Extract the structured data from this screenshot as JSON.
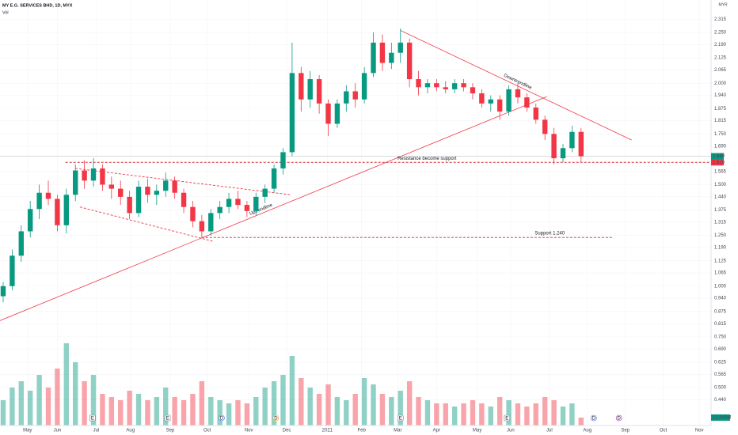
{
  "chart_data": {
    "type": "candlestick",
    "title": "MY E.G. SERVICES BHD, 1D, MYX",
    "subtitle": "Vol",
    "currency": "MYR",
    "up_color": "#089981",
    "down_color": "#f23645",
    "grid": true,
    "xlim": [
      -0.35,
      78.4
    ],
    "ylim": [
      0.313,
      2.41
    ],
    "volume_lim": [
      0,
      175
    ],
    "xticks": [
      {
        "value": 2.7,
        "label": "May"
      },
      {
        "value": 6.0,
        "label": "Jun"
      },
      {
        "value": 10.3,
        "label": "Jul"
      },
      {
        "value": 14.1,
        "label": "Aug"
      },
      {
        "value": 18.5,
        "label": "Sep"
      },
      {
        "value": 22.6,
        "label": "Oct"
      },
      {
        "value": 27.2,
        "label": "Nov"
      },
      {
        "value": 31.4,
        "label": "Dec"
      },
      {
        "value": 35.9,
        "label": "2021"
      },
      {
        "value": 39.7,
        "label": "Feb"
      },
      {
        "value": 43.7,
        "label": "Mar"
      },
      {
        "value": 48.0,
        "label": "Apr"
      },
      {
        "value": 52.5,
        "label": "May"
      },
      {
        "value": 56.2,
        "label": "Jun"
      },
      {
        "value": 60.5,
        "label": "Jul"
      },
      {
        "value": 64.7,
        "label": "Aug"
      },
      {
        "value": 68.9,
        "label": "Sep"
      },
      {
        "value": 73.1,
        "label": "Oct"
      },
      {
        "value": 77.1,
        "label": "Nov"
      }
    ],
    "yticks": [
      2.315,
      {
        "value": 2.25,
        "label": "2.250"
      },
      {
        "value": 2.19,
        "label": "2.190"
      },
      2.125,
      2.065,
      {
        "value": 2.0,
        "label": "2.000"
      },
      {
        "value": 1.94,
        "label": "1.940"
      },
      1.875,
      1.815,
      {
        "value": 1.75,
        "label": "1.750"
      },
      {
        "value": 1.69,
        "label": "1.690"
      },
      1.565,
      {
        "value": 1.5,
        "label": "1.500"
      },
      {
        "value": 1.44,
        "label": "1.440"
      },
      1.375,
      1.315,
      {
        "value": 1.25,
        "label": "1.250"
      },
      {
        "value": 1.19,
        "label": "1.190"
      },
      1.125,
      1.065,
      {
        "value": 1.0,
        "label": "1.000"
      },
      {
        "value": 0.94,
        "label": "0.940"
      },
      0.875,
      0.815,
      {
        "value": 0.75,
        "label": "0.750"
      },
      {
        "value": 0.69,
        "label": "0.690"
      },
      0.625,
      0.565,
      {
        "value": 0.5,
        "label": "0.500"
      },
      {
        "value": 0.44,
        "label": "0.440"
      }
    ],
    "open": [
      0.95,
      1.0,
      1.15,
      1.27,
      1.38,
      1.46,
      1.43,
      1.3,
      1.45,
      1.57,
      1.52,
      1.58,
      1.5,
      1.48,
      1.44,
      1.36,
      1.49,
      1.45,
      1.47,
      1.52,
      1.46,
      1.39,
      1.32,
      1.27,
      1.36,
      1.39,
      1.43,
      1.4,
      1.37,
      1.44,
      1.48,
      1.58,
      1.66,
      2.05,
      1.92,
      2.02,
      1.9,
      1.8,
      1.9,
      1.96,
      1.92,
      2.05,
      2.2,
      2.1,
      2.15,
      2.2,
      2.02,
      1.98,
      2.0,
      1.98,
      1.97,
      2.0,
      1.98,
      1.95,
      1.9,
      1.92,
      1.86,
      1.97,
      1.93,
      1.88,
      1.82,
      1.75,
      1.63,
      1.68,
      1.76
    ],
    "high": [
      1.02,
      1.18,
      1.3,
      1.42,
      1.5,
      1.52,
      1.45,
      1.48,
      1.6,
      1.62,
      1.63,
      1.6,
      1.54,
      1.52,
      1.47,
      1.52,
      1.53,
      1.5,
      1.56,
      1.54,
      1.48,
      1.42,
      1.35,
      1.38,
      1.42,
      1.46,
      1.47,
      1.42,
      1.46,
      1.5,
      1.6,
      1.68,
      2.2,
      2.08,
      2.06,
      2.04,
      1.92,
      1.92,
      1.99,
      2.0,
      2.08,
      2.25,
      2.24,
      2.2,
      2.27,
      2.22,
      2.06,
      2.02,
      2.02,
      2.01,
      2.02,
      2.02,
      2.0,
      1.97,
      1.94,
      1.94,
      1.99,
      2.0,
      1.95,
      1.9,
      1.84,
      1.78,
      1.7,
      1.79,
      1.78
    ],
    "low": [
      0.92,
      0.98,
      1.12,
      1.24,
      1.33,
      1.4,
      1.27,
      1.26,
      1.42,
      1.48,
      1.49,
      1.47,
      1.43,
      1.4,
      1.33,
      1.34,
      1.41,
      1.4,
      1.44,
      1.43,
      1.36,
      1.29,
      1.24,
      1.25,
      1.33,
      1.36,
      1.38,
      1.34,
      1.35,
      1.41,
      1.46,
      1.55,
      1.64,
      1.86,
      1.88,
      1.85,
      1.74,
      1.78,
      1.86,
      1.88,
      1.9,
      2.03,
      2.06,
      2.07,
      2.1,
      1.98,
      1.94,
      1.95,
      1.96,
      1.95,
      1.95,
      1.96,
      1.92,
      1.88,
      1.86,
      1.82,
      1.84,
      1.9,
      1.86,
      1.8,
      1.72,
      1.6,
      1.61,
      1.66,
      1.61
    ],
    "close": [
      1.0,
      1.15,
      1.27,
      1.38,
      1.46,
      1.43,
      1.3,
      1.45,
      1.57,
      1.52,
      1.58,
      1.5,
      1.48,
      1.44,
      1.36,
      1.49,
      1.45,
      1.47,
      1.52,
      1.46,
      1.39,
      1.32,
      1.27,
      1.36,
      1.39,
      1.43,
      1.4,
      1.37,
      1.44,
      1.48,
      1.58,
      1.66,
      2.05,
      1.92,
      2.02,
      1.9,
      1.8,
      1.9,
      1.96,
      1.92,
      2.05,
      2.2,
      2.1,
      2.15,
      2.2,
      2.02,
      1.98,
      2.0,
      1.98,
      1.97,
      2.0,
      1.98,
      1.95,
      1.9,
      1.92,
      1.86,
      1.97,
      1.93,
      1.88,
      1.82,
      1.75,
      1.63,
      1.68,
      1.76,
      1.64
    ],
    "volume": [
      40,
      60,
      70,
      55,
      80,
      60,
      90,
      130,
      100,
      70,
      80,
      50,
      45,
      40,
      55,
      50,
      40,
      45,
      60,
      45,
      40,
      50,
      70,
      45,
      40,
      35,
      40,
      35,
      45,
      60,
      70,
      80,
      110,
      75,
      60,
      50,
      65,
      45,
      40,
      50,
      75,
      65,
      50,
      45,
      55,
      70,
      45,
      40,
      35,
      35,
      30,
      35,
      40,
      35,
      30,
      45,
      40,
      35,
      30,
      35,
      45,
      40,
      30,
      35,
      12.545
    ],
    "price_labels": [
      {
        "value": 1.64,
        "label": "1.640",
        "color": "#089981"
      },
      {
        "value": 1.61,
        "label": "1.610",
        "color": "#f23645"
      }
    ],
    "volume_label": {
      "value": 12.545,
      "label": "12.545M",
      "color": "#089981"
    },
    "annotations": [
      {
        "text": "Uptrendline",
        "style": "solid",
        "color": "#f23645",
        "points": [
          [
            -0.35,
            0.83
          ],
          [
            60.2,
            1.934
          ]
        ]
      },
      {
        "text": "Downtrendline",
        "style": "solid",
        "color": "#f23645",
        "points": [
          [
            44,
            2.26
          ],
          [
            69.6,
            1.72
          ]
        ]
      },
      {
        "text": "Resistance become support",
        "style": "dashed",
        "color": "#d32f2f",
        "points": [
          [
            6.9,
            1.61
          ],
          [
            78.4,
            1.61
          ]
        ]
      },
      {
        "text": "Support 1.240",
        "style": "dashed",
        "color": "#d32f2f",
        "points": [
          [
            22,
            1.24
          ],
          [
            67.6,
            1.24
          ]
        ]
      },
      {
        "style": "dashed",
        "color": "#f23645",
        "points": [
          [
            8,
            1.58
          ],
          [
            31.9,
            1.45
          ]
        ]
      },
      {
        "style": "dashed",
        "color": "#f23645",
        "points": [
          [
            8.5,
            1.39
          ],
          [
            23.3,
            1.22
          ]
        ]
      }
    ],
    "events": [
      {
        "x": 9.9,
        "label": "E",
        "color": "#787b86"
      },
      {
        "x": 18.2,
        "label": "E",
        "color": "#787b86"
      },
      {
        "x": 24.2,
        "label": "D",
        "color": "#2962ff"
      },
      {
        "x": 30.2,
        "label": "D",
        "color": "#ff9800"
      },
      {
        "x": 44.0,
        "label": "E",
        "color": "#787b86"
      },
      {
        "x": 55.8,
        "label": "E",
        "color": "#787b86"
      },
      {
        "x": 65.4,
        "label": "D",
        "color": "#2962ff"
      },
      {
        "x": 68.2,
        "label": "D",
        "color": "#9c27b0"
      }
    ]
  }
}
